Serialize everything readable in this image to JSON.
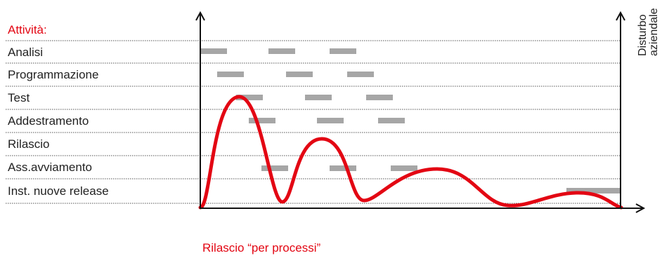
{
  "activities_title": "Attività:",
  "rows": [
    {
      "label": "Analisi",
      "bars": [
        1,
        2,
        3
      ]
    },
    {
      "label": "Programmazione",
      "bars": [
        1,
        2,
        3
      ]
    },
    {
      "label": "Test",
      "bars": [
        1,
        2,
        3
      ]
    },
    {
      "label": "Addestramento",
      "bars": [
        1,
        2,
        3
      ]
    },
    {
      "label": "Rilascio",
      "bars": []
    },
    {
      "label": "Ass.avviamento",
      "bars": [
        1,
        2,
        3
      ]
    },
    {
      "label": "Inst. nuove release",
      "bars": [
        4
      ]
    }
  ],
  "right_axis_label_line1": "Disturbo",
  "right_axis_label_line2": "aziendale",
  "caption": "Rilascio “per processi”",
  "colors": {
    "accent": "#e30613",
    "bar": "#a6a6a6",
    "text": "#222222",
    "grid": "#555555"
  }
}
